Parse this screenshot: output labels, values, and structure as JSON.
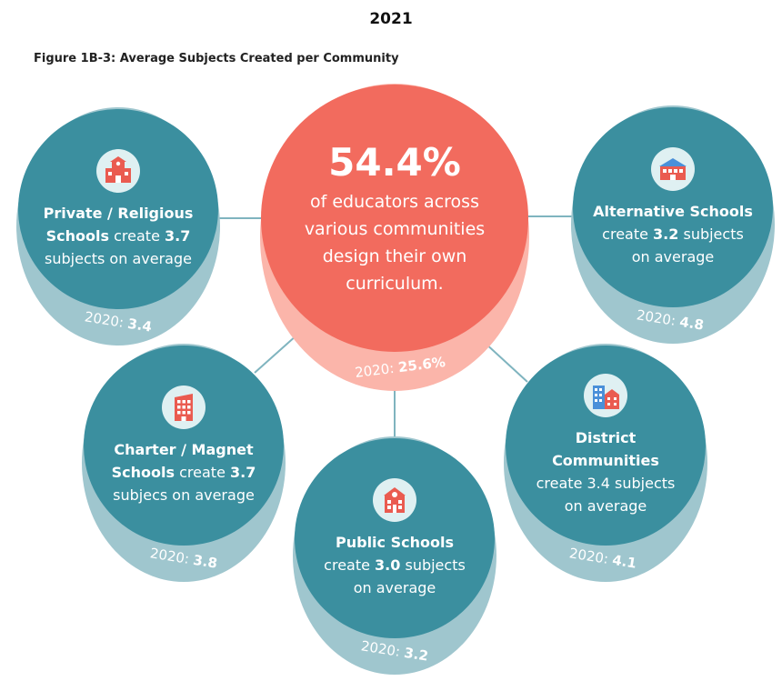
{
  "year": "2021",
  "figure_title": "Figure 1B-3: Average Subjects Created per Community",
  "center": {
    "value": "54.4%",
    "text_lines": [
      "of educators across",
      "various communities",
      "design their own",
      "curriculum."
    ],
    "prev_label": "2020:",
    "prev_value": "25.6%"
  },
  "communities": {
    "private": {
      "icon": "school-building-icon",
      "l1": "Private / Religious",
      "l2_bold": "Schools",
      "l2_rest": " create ",
      "l2_value": "3.7",
      "l3": "subjects on average",
      "prev_label": "2020:",
      "prev_value": "3.4"
    },
    "alternative": {
      "icon": "schoolhouse-icon",
      "l1": "Alternative Schools",
      "l2_pre": "create ",
      "l2_value": "3.2",
      "l2_rest": " subjects",
      "l3": "on average",
      "prev_label": "2020:",
      "prev_value": "4.8"
    },
    "charter": {
      "icon": "apartment-building-icon",
      "l1": "Charter / Magnet",
      "l2_bold": "Schools",
      "l2_rest": " create ",
      "l2_value": "3.7",
      "l3": "subjecs on average",
      "prev_label": "2020:",
      "prev_value": "3.8"
    },
    "public": {
      "icon": "public-school-icon",
      "l1": "Public Schools",
      "l2_pre": "create ",
      "l2_value": "3.0",
      "l2_rest": " subjects",
      "l3": "on average",
      "prev_label": "2020:",
      "prev_value": "3.2"
    },
    "district": {
      "icon": "city-buildings-icon",
      "l1": "District",
      "l2": "Communities",
      "l3": "create 3.4 subjects",
      "l4": "on average",
      "prev_label": "2020:",
      "prev_value": "4.1"
    }
  },
  "colors": {
    "teal": "#3b8f9f",
    "teal_shadow": "#9fc6ce",
    "coral": "#f26b5e",
    "coral_shadow": "#fbb5aa",
    "icon_red": "#ea5b50"
  }
}
